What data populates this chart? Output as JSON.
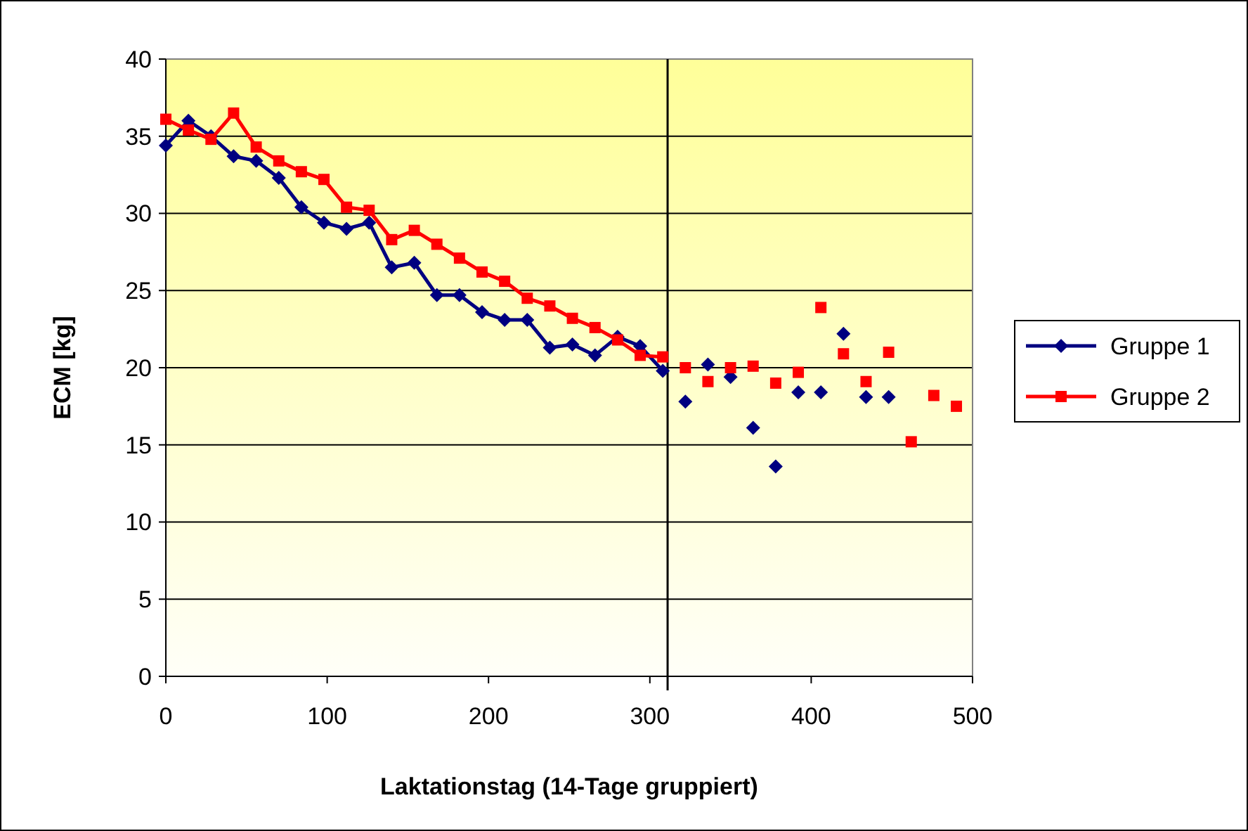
{
  "chart_data": {
    "type": "line",
    "xlabel": "Laktationstag (14-Tage gruppiert)",
    "ylabel": "ECM [kg]",
    "xlim": [
      0,
      500
    ],
    "xticks": [
      0,
      100,
      200,
      300,
      400,
      500
    ],
    "ylim": [
      0,
      40
    ],
    "yticks": [
      0,
      5,
      10,
      15,
      20,
      25,
      30,
      35,
      40
    ],
    "grid": "y",
    "legend": "right",
    "line_style": "solid",
    "ref_lines": [
      {
        "axis": "x",
        "value": 311,
        "color": "#000000"
      }
    ],
    "series": [
      {
        "name": "Gruppe 1",
        "color": "#000080",
        "marker": "diamond",
        "x": [
          0,
          14,
          28,
          42,
          56,
          70,
          84,
          98,
          112,
          126,
          140,
          154,
          168,
          182,
          196,
          210,
          224,
          238,
          252,
          266,
          280,
          294,
          308
        ],
        "values": [
          34.4,
          36.0,
          35.0,
          33.7,
          33.4,
          32.3,
          30.4,
          29.4,
          29.0,
          29.4,
          26.5,
          26.8,
          24.7,
          24.7,
          23.6,
          23.1,
          23.1,
          21.3,
          21.5,
          20.8,
          22.0,
          21.4,
          19.8
        ]
      },
      {
        "name": "Gruppe 2",
        "color": "#ff0000",
        "marker": "square",
        "x": [
          0,
          14,
          28,
          42,
          56,
          70,
          84,
          98,
          112,
          126,
          140,
          154,
          168,
          182,
          196,
          210,
          224,
          238,
          252,
          266,
          280,
          294,
          308
        ],
        "values": [
          36.1,
          35.4,
          34.8,
          36.5,
          34.3,
          33.4,
          32.7,
          32.2,
          30.4,
          30.2,
          28.3,
          28.9,
          28.0,
          27.1,
          26.2,
          25.6,
          24.5,
          24.0,
          23.2,
          22.6,
          21.8,
          20.8,
          20.7
        ]
      },
      {
        "type": "scatter",
        "color": "#000080",
        "marker": "diamond",
        "x": [
          322,
          336,
          350,
          364,
          378,
          392,
          406,
          420,
          434,
          448
        ],
        "values": [
          17.8,
          20.2,
          19.4,
          16.1,
          13.6,
          18.4,
          18.4,
          22.2,
          18.1,
          18.1
        ]
      },
      {
        "type": "scatter",
        "color": "#ff0000",
        "marker": "square",
        "x": [
          322,
          336,
          350,
          364,
          378,
          392,
          406,
          420,
          434,
          448,
          462,
          476,
          490
        ],
        "values": [
          20.0,
          19.1,
          20.0,
          20.1,
          19.0,
          19.7,
          23.9,
          20.9,
          19.1,
          21.0,
          15.2,
          18.2,
          17.5
        ]
      }
    ]
  }
}
